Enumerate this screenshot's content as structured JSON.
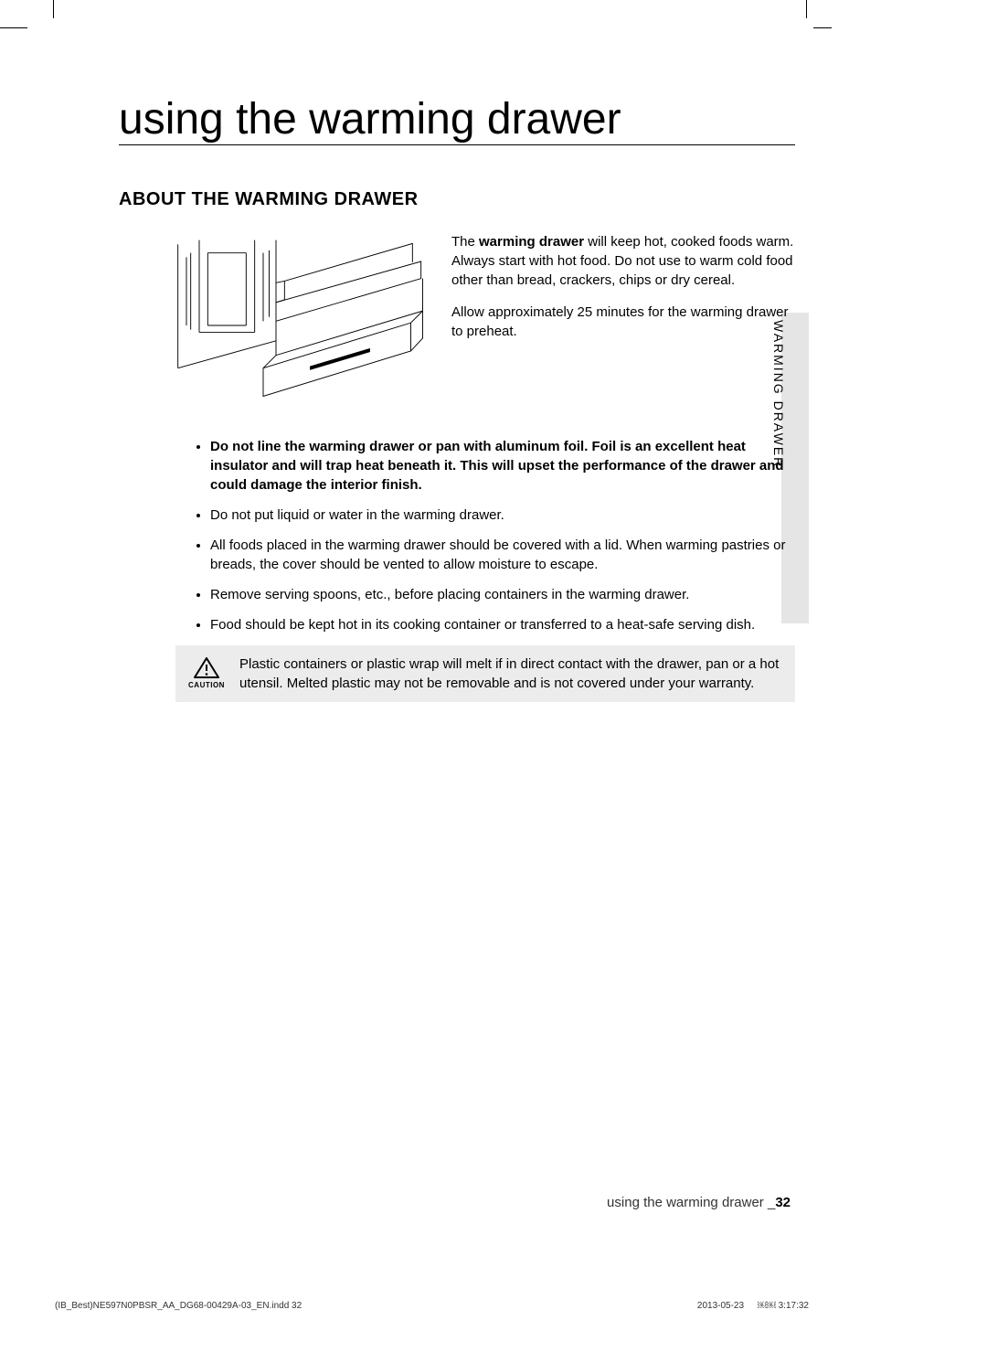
{
  "title": "using the warming drawer",
  "section_heading": "ABOUT THE WARMING DRAWER",
  "intro": {
    "p1_prefix": "The ",
    "p1_bold": "warming drawer",
    "p1_suffix": " will keep hot, cooked foods warm. Always start with hot food. Do not use to warm cold food other than bread, crackers, chips or dry cereal.",
    "p2": "Allow approximately 25 minutes for the warming drawer to preheat."
  },
  "bullets": [
    {
      "text": "Do not line the warming drawer or pan with aluminum foil. Foil is an excellent heat insulator and will trap heat beneath it. This will upset the performance of the drawer and could damage the interior finish.",
      "bold": true
    },
    {
      "text": "Do not put liquid or water in the warming drawer.",
      "bold": false
    },
    {
      "text": "All foods placed in the warming drawer should be covered with a lid. When warming pastries or breads, the cover should be vented to allow moisture to escape.",
      "bold": false
    },
    {
      "text": "Remove serving spoons, etc., before placing containers in the warming drawer.",
      "bold": false
    },
    {
      "text": "Food should be kept hot in its cooking container or transferred to a heat-safe serving dish.",
      "bold": false
    }
  ],
  "caution": {
    "label": "CAUTION",
    "text": "Plastic containers or plastic wrap will melt if in direct contact with the drawer, pan or a hot utensil. Melted plastic may not be removable and is not covered under your warranty."
  },
  "side_tab": "WARMING DRAWER",
  "footer": {
    "text": "using the warming drawer _",
    "page": "32"
  },
  "print_footer": {
    "file": "(IB_Best)NE597N0PBSR_AA_DG68-00429A-03_EN.indd   32",
    "date": "2013-05-23",
    "time": "￼￼ 3:17:32"
  }
}
